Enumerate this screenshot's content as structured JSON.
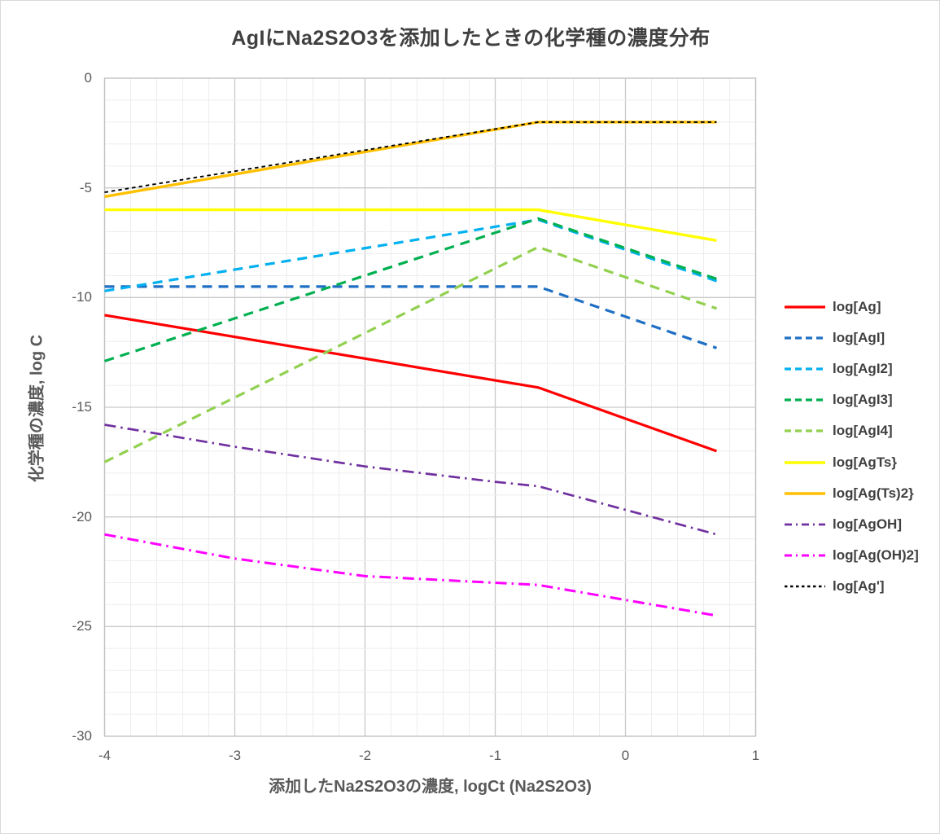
{
  "title": "AgIにNa2S2O3を添加したときの化学種の濃度分布",
  "chart_data": {
    "type": "line",
    "title": "AgIにNa2S2O3を添加したときの化学種の濃度分布",
    "xlabel": "添加したNa2S2O3の濃度, logCt (Na2S2O3)",
    "ylabel": "化学種の濃度, log C",
    "x_axis": {
      "min": -4,
      "max": 1,
      "minor_step": 0.2,
      "tick_values": [
        -4,
        -3,
        -2,
        -1,
        0,
        1
      ],
      "tick_labels": [
        "-4",
        "-3",
        "-2",
        "-1",
        "0",
        "1"
      ]
    },
    "y_axis": {
      "min": -30,
      "max": 0,
      "minor_step": 1,
      "tick_values": [
        0,
        -5,
        -10,
        -15,
        -20,
        -25,
        -30
      ],
      "tick_labels": [
        "0",
        "-5",
        "-10",
        "-15",
        "-20",
        "-25",
        "-30"
      ]
    },
    "grid": {
      "show": true,
      "minor_color": "#ededed",
      "major_color": "#c9c9c9",
      "border_color": "#c3c3c3"
    },
    "text_color": "#595959",
    "title_color": "#404040",
    "legend_position": "right",
    "series": [
      {
        "label": "log[Ag]",
        "color": "#ff0000",
        "style": "solid",
        "width": 3.2,
        "x": [
          -4,
          -0.67,
          0.7
        ],
        "y": [
          -10.8,
          -14.1,
          -17.0
        ]
      },
      {
        "label": "log[AgI]",
        "color": "#1f6fc4",
        "style": "dash",
        "width": 3.2,
        "x": [
          -4,
          -0.67,
          0.7
        ],
        "y": [
          -9.5,
          -9.5,
          -12.3
        ]
      },
      {
        "label": "log[AgI2]",
        "color": "#00b0f0",
        "style": "dash",
        "width": 3.2,
        "x": [
          -4,
          -0.67,
          0.7
        ],
        "y": [
          -9.7,
          -6.45,
          -9.25
        ]
      },
      {
        "label": "log[AgI3]",
        "color": "#00b050",
        "style": "dash",
        "width": 3.2,
        "x": [
          -4,
          -0.67,
          0.7
        ],
        "y": [
          -12.9,
          -6.4,
          -9.15
        ]
      },
      {
        "label": "log[AgI4]",
        "color": "#92d050",
        "style": "dash",
        "width": 3.2,
        "x": [
          -4,
          -0.67,
          0.7
        ],
        "y": [
          -17.5,
          -7.7,
          -10.5
        ]
      },
      {
        "label": "log[AgTs}",
        "color": "#ffff00",
        "style": "solid",
        "width": 3.4,
        "x": [
          -4,
          -0.67,
          0.7
        ],
        "y": [
          -6.0,
          -6.0,
          -7.4
        ]
      },
      {
        "label": "log[Ag(Ts)2}",
        "color": "#ffc000",
        "style": "solid",
        "width": 3.4,
        "x": [
          -4,
          -0.67,
          0.7
        ],
        "y": [
          -5.4,
          -2.0,
          -2.0
        ]
      },
      {
        "label": "log[AgOH]",
        "color": "#7030a0",
        "style": "dashdot",
        "width": 2.7,
        "x": [
          -4,
          -3,
          -2,
          -1,
          -0.67,
          0.7
        ],
        "y": [
          -15.8,
          -16.8,
          -17.7,
          -18.4,
          -18.6,
          -20.8
        ]
      },
      {
        "label": "log[Ag(OH)2]",
        "color": "#ff00ff",
        "style": "dashdot",
        "width": 3.0,
        "x": [
          -4,
          -3,
          -2,
          -1,
          -0.67,
          0.7
        ],
        "y": [
          -20.8,
          -21.9,
          -22.7,
          -23.0,
          -23.1,
          -24.5
        ]
      },
      {
        "label": "log[Ag']",
        "color": "#000000",
        "style": "dot",
        "width": 1.9,
        "x": [
          -4,
          -0.67,
          0.7
        ],
        "y": [
          -5.2,
          -2.0,
          -2.0
        ]
      }
    ]
  }
}
